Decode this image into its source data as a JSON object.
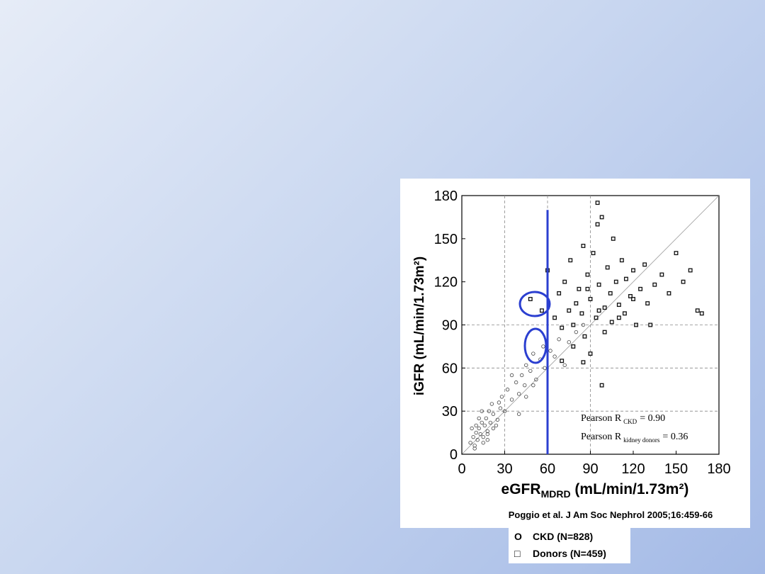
{
  "chart_data": {
    "type": "scatter",
    "xlabel": {
      "text": "eGFR",
      "subscript": "MDRD",
      "rest": " (mL/min/1.73m²)"
    },
    "ylabel": "iGFR (mL/min/1.73m²)",
    "xlim": [
      0,
      180
    ],
    "ylim": [
      0,
      180
    ],
    "xticks": [
      0,
      30,
      60,
      90,
      120,
      150,
      180
    ],
    "yticks": [
      0,
      30,
      60,
      90,
      120,
      150,
      180
    ],
    "dashed_grid": {
      "x": [
        30,
        60,
        90
      ],
      "y": [
        30,
        60,
        90
      ]
    },
    "diagonal": true,
    "vline": {
      "x": 60,
      "ylim": [
        0,
        170
      ],
      "color": "#2b3fd0"
    },
    "series": [
      {
        "name": "CKD (N=828)",
        "marker": "circle",
        "marker_label": "O",
        "color": "#444444",
        "x": [
          6,
          8,
          9,
          10,
          11,
          12,
          13,
          14,
          15,
          16,
          17,
          18,
          19,
          20,
          22,
          24,
          7,
          9,
          12,
          15,
          18,
          21,
          25,
          27,
          28,
          30,
          32,
          35,
          38,
          40,
          42,
          44,
          45,
          48,
          50,
          52,
          55,
          57,
          58,
          62,
          65,
          68,
          72,
          75,
          80,
          85,
          50,
          45,
          40,
          35,
          10,
          14,
          18,
          22,
          26
        ],
        "values": [
          8,
          12,
          6,
          15,
          10,
          18,
          14,
          22,
          12,
          20,
          25,
          16,
          30,
          22,
          28,
          20,
          18,
          4,
          25,
          8,
          14,
          35,
          24,
          32,
          40,
          30,
          45,
          38,
          50,
          42,
          55,
          48,
          62,
          58,
          70,
          52,
          66,
          75,
          60,
          72,
          68,
          80,
          62,
          78,
          85,
          90,
          48,
          40,
          28,
          55,
          20,
          30,
          10,
          18,
          36
        ]
      },
      {
        "name": "Donors (N=459)",
        "marker": "square",
        "marker_label": "□",
        "color": "#111111",
        "x": [
          48,
          56,
          60,
          65,
          68,
          70,
          72,
          75,
          76,
          78,
          80,
          82,
          84,
          85,
          86,
          88,
          90,
          92,
          94,
          95,
          96,
          98,
          100,
          102,
          104,
          105,
          106,
          108,
          110,
          112,
          114,
          115,
          118,
          120,
          122,
          125,
          128,
          130,
          135,
          140,
          145,
          150,
          155,
          160,
          165,
          168,
          95,
          96,
          98,
          90,
          85,
          100,
          110,
          120,
          132,
          88,
          78,
          70
        ],
        "values": [
          108,
          100,
          128,
          95,
          112,
          88,
          120,
          100,
          135,
          90,
          105,
          115,
          98,
          145,
          82,
          125,
          108,
          140,
          95,
          175,
          118,
          165,
          102,
          130,
          112,
          92,
          150,
          120,
          104,
          135,
          98,
          122,
          110,
          128,
          90,
          115,
          132,
          105,
          118,
          125,
          112,
          140,
          120,
          128,
          100,
          98,
          160,
          100,
          48,
          70,
          64,
          85,
          95,
          108,
          90,
          115,
          75,
          65
        ]
      }
    ],
    "stats": [
      {
        "label": "Pearson R",
        "subscript": "CKD",
        "value": 0.9,
        "value_label": "= 0.90"
      },
      {
        "label": "Pearson R",
        "subscript": "kidney donors",
        "value": 0.36,
        "value_label": "= 0.36"
      }
    ],
    "citation": "Poggio et al. J Am Soc Nephrol 2005;16:459-66"
  }
}
